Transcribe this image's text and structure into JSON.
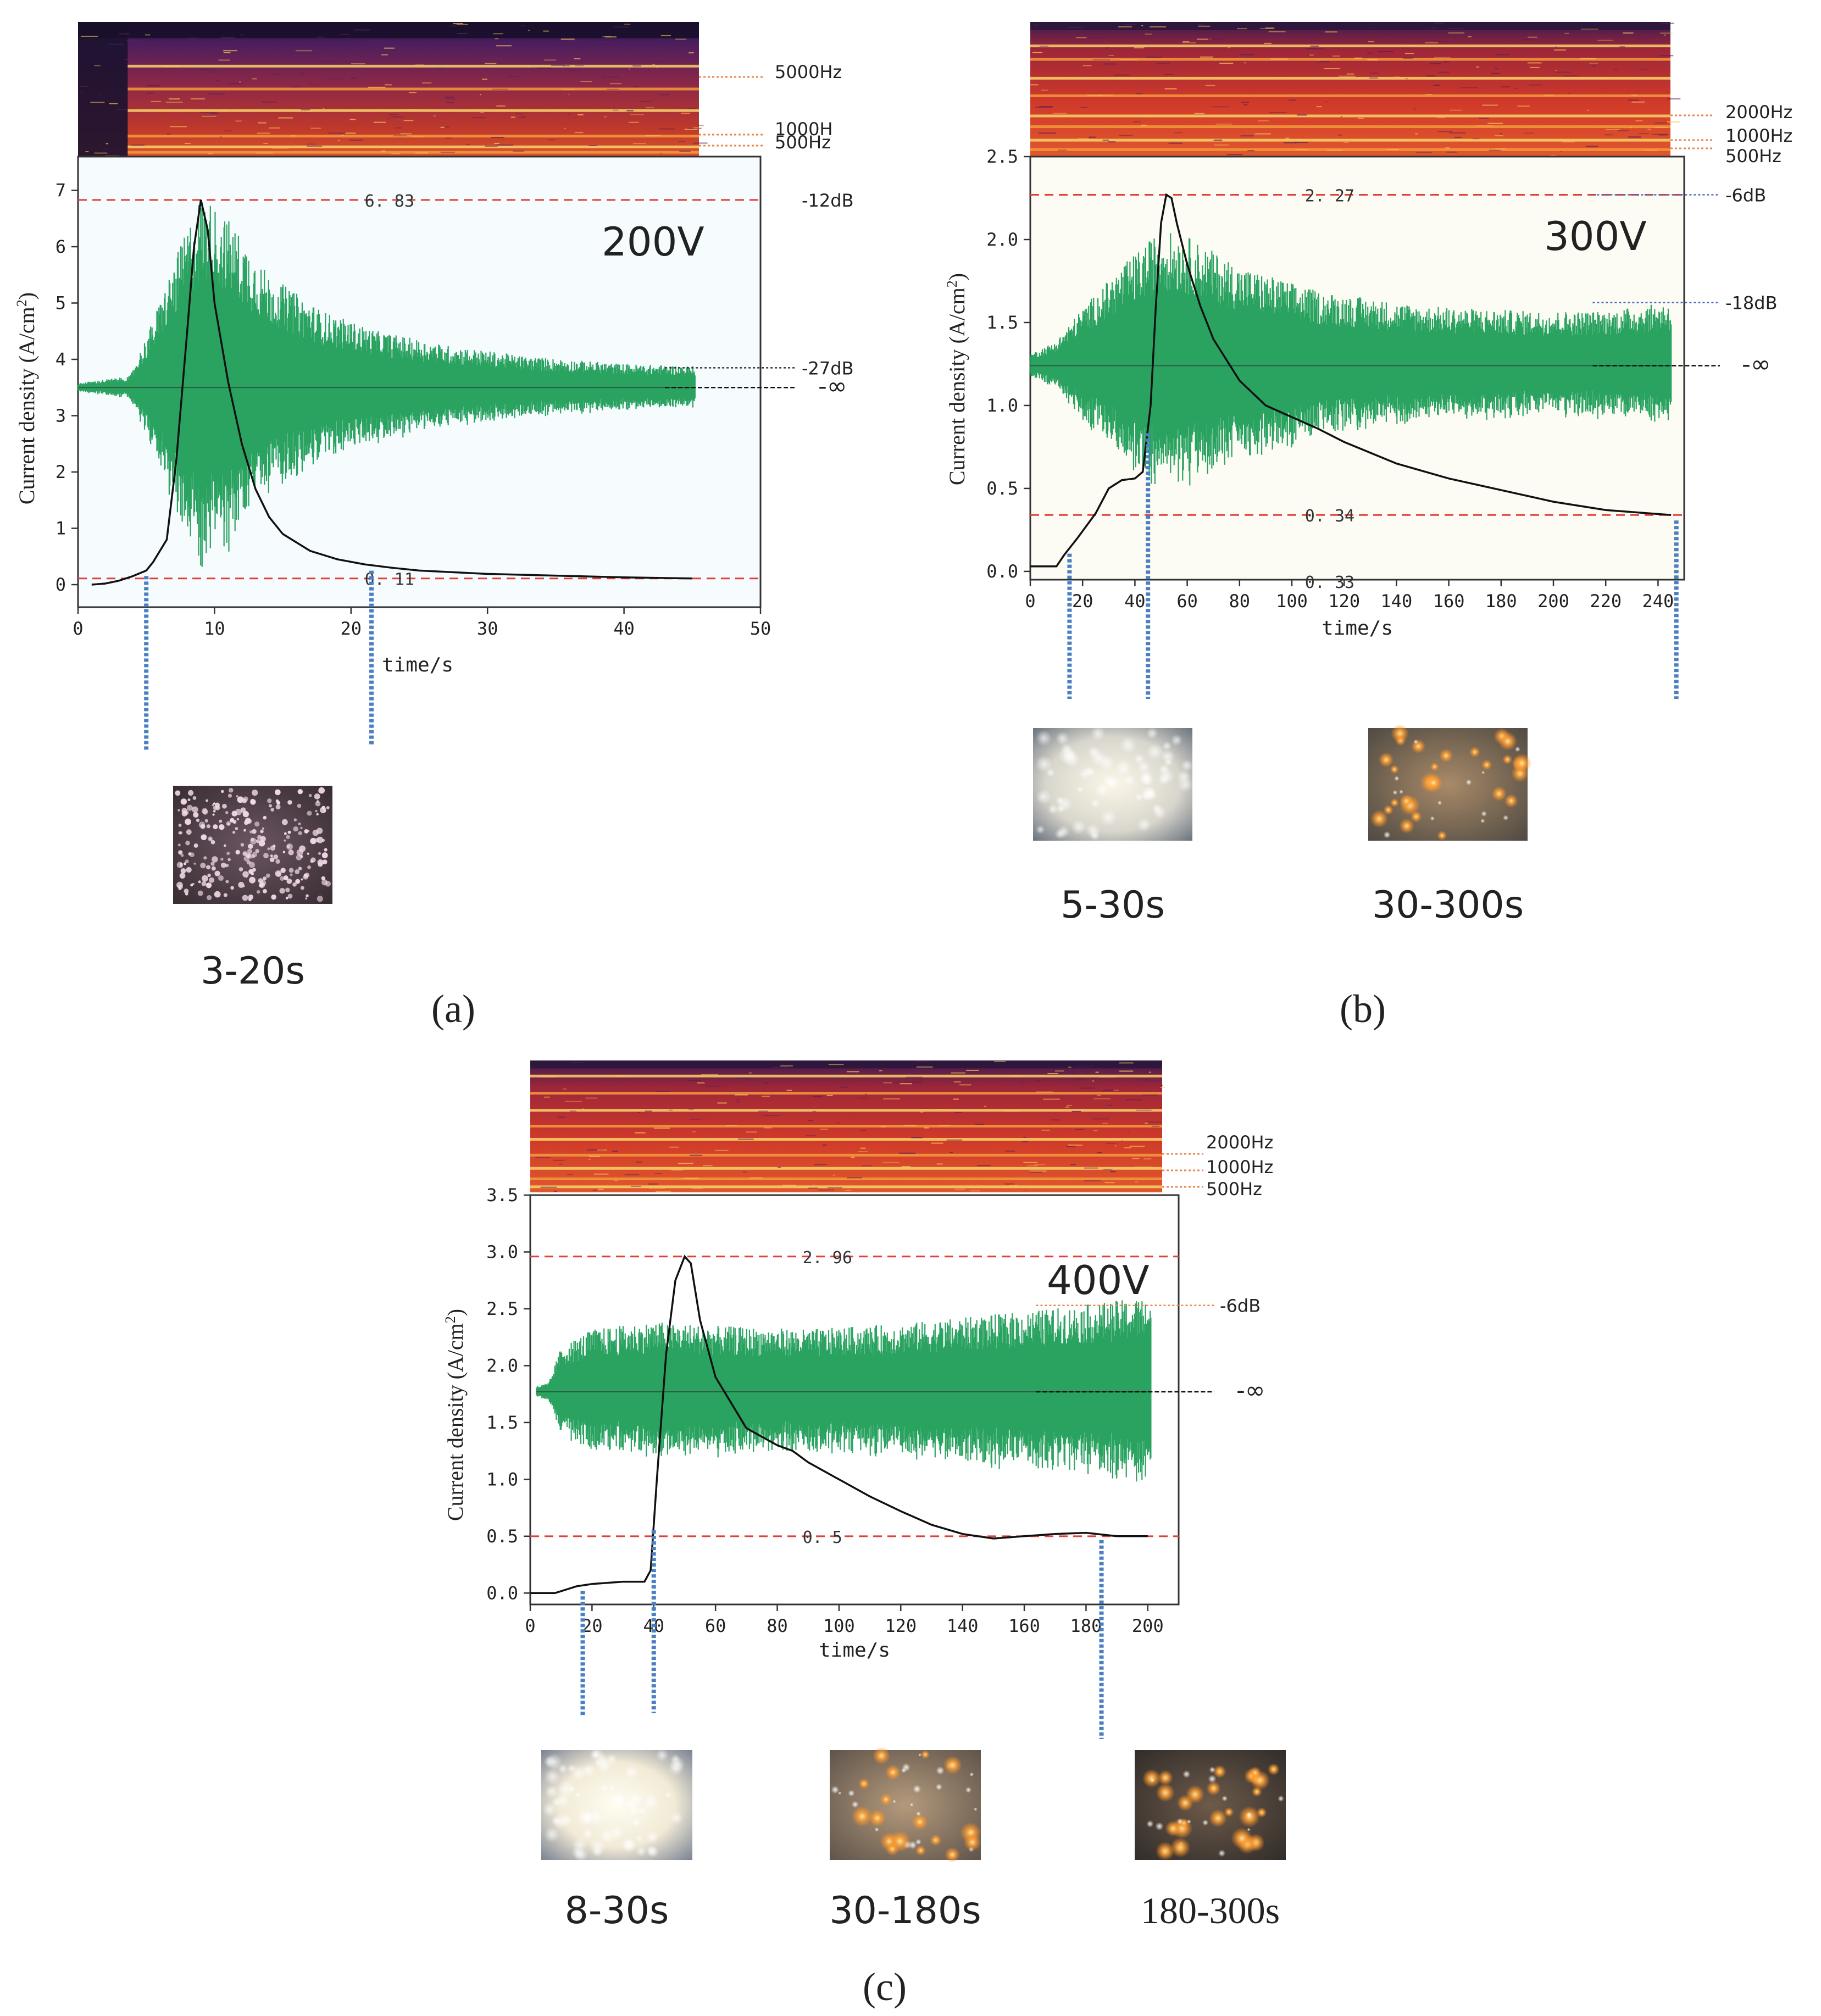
{
  "colors": {
    "threshold_line": "#e0403a",
    "waveform": "#1f9e58",
    "current_curve": "#111111",
    "marker_line": "#4a7fc2",
    "freq_line": "#e8874a",
    "db_line_blue": "#4a6bb8",
    "plot_bg": "#f7fbfc",
    "spectro_dark": "#2a1640",
    "spectro_mid": "#b0282b",
    "spectro_bright": "#f6d46a"
  },
  "chart_data": [
    {
      "panel": "a",
      "panel_label": "(a)",
      "type": "line",
      "voltage_label": "200V",
      "xlabel": "time/s",
      "ylabel": "Current density (A/cm²)",
      "ylabel_main": "Current density (A/cm",
      "ylabel_sup": "2",
      "ylabel_tail": ")",
      "xlim": [
        0,
        50
      ],
      "ylim": [
        -0.4,
        7.6
      ],
      "xticks": [
        0,
        10,
        20,
        30,
        40,
        50
      ],
      "xtick_labels": [
        "0",
        "10",
        "20",
        "30",
        "40",
        "50"
      ],
      "yticks": [
        0,
        1,
        2,
        3,
        4,
        5,
        6,
        7
      ],
      "ytick_labels": [
        "0",
        "1",
        "2",
        "3",
        "4",
        "5",
        "6",
        "7"
      ],
      "threshold_lines": [
        {
          "y": 6.83,
          "label": "6. 83"
        },
        {
          "y": 0.11,
          "label": "0. 11"
        }
      ],
      "db_labels": [
        {
          "label": "-12dB",
          "y": 6.83,
          "line": false
        },
        {
          "label": "-27dB",
          "y": 3.85,
          "line": true
        },
        {
          "label": "-∞",
          "y": 3.5,
          "line": true
        }
      ],
      "freq_labels": [
        "5000Hz",
        "1000H",
        "500Hz"
      ],
      "wave_center": 3.5,
      "wave_envelope": {
        "t": [
          0,
          3.8,
          5.5,
          7,
          9,
          11,
          14,
          18,
          22,
          27,
          33,
          40,
          45.2
        ],
        "amp": [
          0.08,
          0.2,
          1.2,
          2.2,
          3.45,
          3.0,
          2.0,
          1.35,
          1.0,
          0.75,
          0.55,
          0.42,
          0.38
        ]
      },
      "wave_end": 45.2,
      "current_curve": {
        "x": [
          1,
          2,
          3,
          4,
          5,
          5.5,
          6.5,
          7.2,
          8,
          8.5,
          9,
          9.5,
          10,
          11,
          12,
          13,
          14,
          15,
          17,
          19,
          21,
          23,
          25,
          30,
          35,
          40,
          45
        ],
        "y": [
          0,
          0.02,
          0.07,
          0.15,
          0.25,
          0.4,
          0.8,
          2.2,
          4.5,
          6.0,
          6.83,
          6.3,
          5.0,
          3.6,
          2.5,
          1.7,
          1.2,
          0.9,
          0.6,
          0.45,
          0.36,
          0.3,
          0.25,
          0.19,
          0.16,
          0.13,
          0.11
        ]
      },
      "markers": [
        5,
        21.5
      ],
      "images": [
        {
          "caption": "3-20s",
          "style": "sparkle"
        }
      ]
    },
    {
      "panel": "b",
      "panel_label": "(b)",
      "type": "line",
      "voltage_label": "300V",
      "xlabel": "time/s",
      "ylabel": "Current density (A/cm²)",
      "ylabel_main": "Current density (A/cm",
      "ylabel_sup": "2",
      "ylabel_tail": ")",
      "xlim": [
        0,
        250
      ],
      "ylim": [
        -0.05,
        2.5
      ],
      "xticks": [
        0,
        20,
        40,
        60,
        80,
        100,
        120,
        140,
        160,
        180,
        200,
        220,
        240
      ],
      "xtick_labels": [
        "0",
        "20",
        "40",
        "60",
        "80",
        "100",
        "120",
        "140",
        "160",
        "180",
        "200",
        "220",
        "240"
      ],
      "yticks": [
        0,
        0.5,
        1.0,
        1.5,
        2.0,
        2.5
      ],
      "ytick_labels": [
        "0.0",
        "0.5",
        "1.0",
        "1.5",
        "2.0",
        "2.5"
      ],
      "threshold_lines": [
        {
          "y": 2.27,
          "label": "2. 27"
        },
        {
          "y": 0.34,
          "label": "0. 34"
        }
      ],
      "extra_value_label": {
        "y": -0.1,
        "label": "0. 33"
      },
      "db_labels": [
        {
          "label": "-6dB",
          "y": 2.27,
          "line": true
        },
        {
          "label": "-18dB",
          "y": 1.62,
          "line": true
        },
        {
          "label": "-∞",
          "y": 1.24,
          "line": true
        }
      ],
      "freq_labels": [
        "2000Hz",
        "1000Hz",
        "500Hz"
      ],
      "wave_center": 1.24,
      "wave_envelope": {
        "t": [
          0,
          10,
          20,
          35,
          50,
          60,
          80,
          110,
          150,
          190,
          220,
          243
        ],
        "amp": [
          0.07,
          0.15,
          0.35,
          0.6,
          0.82,
          0.78,
          0.6,
          0.45,
          0.36,
          0.33,
          0.33,
          0.38
        ]
      },
      "wave_end": 245,
      "current_curve": {
        "x": [
          0,
          10,
          13,
          18,
          25,
          30,
          35,
          40,
          43,
          46,
          48,
          50,
          52,
          54,
          56,
          60,
          65,
          70,
          80,
          90,
          100,
          110,
          120,
          140,
          160,
          180,
          200,
          220,
          245
        ],
        "y": [
          0.03,
          0.03,
          0.1,
          0.2,
          0.35,
          0.5,
          0.55,
          0.56,
          0.6,
          1.0,
          1.6,
          2.1,
          2.27,
          2.25,
          2.1,
          1.85,
          1.6,
          1.4,
          1.15,
          1.0,
          0.93,
          0.86,
          0.78,
          0.65,
          0.56,
          0.49,
          0.42,
          0.37,
          0.34
        ]
      },
      "markers": [
        15,
        45,
        247
      ],
      "images": [
        {
          "caption": "5-30s",
          "style": "foggy"
        },
        {
          "caption": "30-300s",
          "style": "orange"
        }
      ]
    },
    {
      "panel": "c",
      "panel_label": "(c)",
      "type": "line",
      "voltage_label": "400V",
      "xlabel": "time/s",
      "ylabel": "Current density (A/cm²)",
      "ylabel_main": "Current density (A/cm",
      "ylabel_sup": "2",
      "ylabel_tail": ")",
      "xlim": [
        0,
        210
      ],
      "ylim": [
        -0.1,
        3.5
      ],
      "xticks": [
        0,
        20,
        40,
        60,
        80,
        100,
        120,
        140,
        160,
        180,
        200
      ],
      "xtick_labels": [
        "0",
        "20",
        "40",
        "60",
        "80",
        "100",
        "120",
        "140",
        "160",
        "180",
        "200"
      ],
      "yticks": [
        0,
        0.5,
        1.0,
        1.5,
        2.0,
        2.5,
        3.0,
        3.5
      ],
      "ytick_labels": [
        "0.0",
        "0.5",
        "1.0",
        "1.5",
        "2.0",
        "2.5",
        "3.0",
        "3.5"
      ],
      "threshold_lines": [
        {
          "y": 2.96,
          "label": "2. 96"
        },
        {
          "y": 0.5,
          "label": "0. 5"
        }
      ],
      "db_labels": [
        {
          "label": "-6dB",
          "y": 2.53,
          "line": true
        },
        {
          "label": "-∞",
          "y": 1.77,
          "line": true
        }
      ],
      "freq_labels": [
        "2000Hz",
        "1000Hz",
        "500Hz"
      ],
      "wave_center": 1.77,
      "wave_envelope": {
        "t": [
          2,
          6,
          10,
          20,
          40,
          60,
          90,
          120,
          150,
          175,
          195,
          201
        ],
        "amp": [
          0.05,
          0.08,
          0.4,
          0.55,
          0.62,
          0.58,
          0.55,
          0.6,
          0.68,
          0.75,
          0.82,
          0.85
        ]
      },
      "wave_end": 201,
      "current_curve": {
        "x": [
          0,
          8,
          15,
          20,
          30,
          37,
          39,
          41,
          44,
          47,
          50,
          52,
          55,
          60,
          70,
          80,
          85,
          90,
          100,
          110,
          120,
          130,
          140,
          150,
          160,
          170,
          180,
          190,
          200
        ],
        "y": [
          0,
          0,
          0.06,
          0.08,
          0.1,
          0.1,
          0.2,
          1.0,
          2.1,
          2.75,
          2.96,
          2.9,
          2.4,
          1.9,
          1.45,
          1.3,
          1.25,
          1.15,
          1.0,
          0.85,
          0.72,
          0.6,
          0.52,
          0.48,
          0.5,
          0.52,
          0.53,
          0.5,
          0.5
        ]
      },
      "markers": [
        17,
        40,
        185
      ],
      "images": [
        {
          "caption": "8-30s",
          "style": "bright"
        },
        {
          "caption": "30-180s",
          "style": "warm"
        },
        {
          "caption": "180-300s",
          "style": "dark-orange"
        }
      ]
    }
  ]
}
